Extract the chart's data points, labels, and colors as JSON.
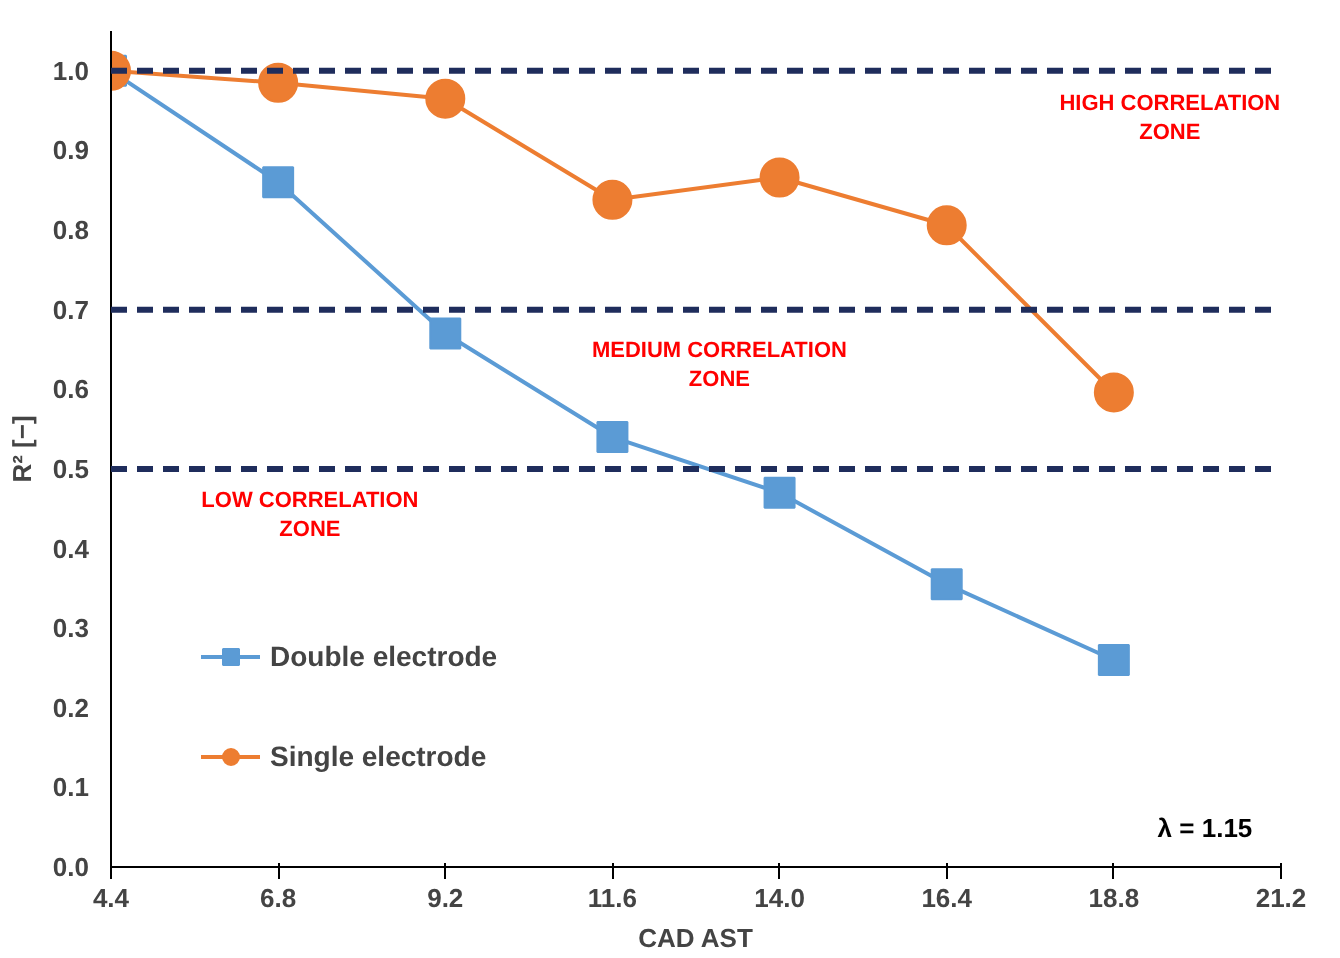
{
  "chart_data": {
    "type": "line",
    "xlabel": "CAD AST",
    "ylabel": "R² [−]",
    "x": [
      4.4,
      6.8,
      9.2,
      11.6,
      14.0,
      16.4,
      18.8
    ],
    "xlim": [
      4.4,
      21.2
    ],
    "ylim": [
      0,
      1.05
    ],
    "xticks": [
      {
        "value": 4.4,
        "label": "4.4"
      },
      {
        "value": 6.8,
        "label": "6.8"
      },
      {
        "value": 9.2,
        "label": "9.2"
      },
      {
        "value": 11.6,
        "label": "11.6"
      },
      {
        "value": 14.0,
        "label": "14.0"
      },
      {
        "value": 16.4,
        "label": "16.4"
      },
      {
        "value": 18.8,
        "label": "18.8"
      },
      {
        "value": 21.2,
        "label": "21.2"
      }
    ],
    "yticks": [
      {
        "value": 0,
        "label": "0.0"
      },
      {
        "value": 0.1,
        "label": "0.1"
      },
      {
        "value": 0.2,
        "label": "0.2"
      },
      {
        "value": 0.3,
        "label": "0.3"
      },
      {
        "value": 0.4,
        "label": "0.4"
      },
      {
        "value": 0.5,
        "label": "0.5"
      },
      {
        "value": 0.6,
        "label": "0.6"
      },
      {
        "value": 0.7,
        "label": "0.7"
      },
      {
        "value": 0.8,
        "label": "0.8"
      },
      {
        "value": 0.9,
        "label": "0.9"
      },
      {
        "value": 1.0,
        "label": "1.0"
      }
    ],
    "series": [
      {
        "name": "Double electrode",
        "color": "#5b9bd5",
        "marker": "square",
        "values": [
          1.0,
          0.86,
          0.67,
          0.54,
          0.47,
          0.355,
          0.26
        ]
      },
      {
        "name": "Single electrode",
        "color": "#ed7d31",
        "marker": "circle",
        "values": [
          1.0,
          0.985,
          0.965,
          0.838,
          0.866,
          0.806,
          0.596
        ]
      }
    ],
    "ref_lines": [
      {
        "axis": "y",
        "value": 1.0,
        "color": "#1f2d5c",
        "line_style": "dashed"
      },
      {
        "axis": "y",
        "value": 0.7,
        "color": "#1f2d5c",
        "line_style": "dashed"
      },
      {
        "axis": "y",
        "value": 0.5,
        "color": "#1f2d5c",
        "line_style": "dashed"
      }
    ],
    "annotations": [
      "HIGH CORRELATION\nZONE",
      "MEDIUM CORRELATION\nZONE",
      "LOW CORRELATION\nZONE",
      "λ = 1.15"
    ],
    "legend": "bottom left",
    "grid": false
  }
}
